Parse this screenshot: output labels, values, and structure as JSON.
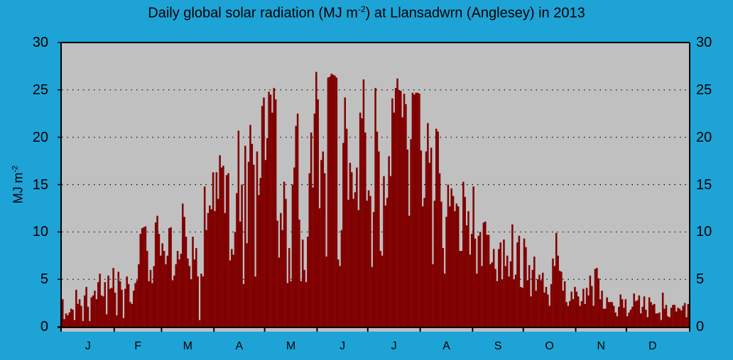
{
  "chart_data": {
    "type": "bar",
    "title": "Daily global solar radiation (MJ m-2) at Llansadwrn (Anglesey) in 2013",
    "title_main": "Daily global solar radiation (MJ m",
    "title_sup": "-2",
    "title_rest": ") at Llansadwrn (Anglesey) in 2013",
    "xlabel": "",
    "ylabel": "MJ m-2",
    "ylabel_main": "MJ m",
    "ylabel_sup": "-2",
    "ylim": [
      0,
      30
    ],
    "yticks": [
      0,
      5,
      10,
      15,
      20,
      25,
      30
    ],
    "grid": "horizontal dotted",
    "legend": "none",
    "months": [
      "J",
      "F",
      "M",
      "A",
      "M",
      "J",
      "J",
      "A",
      "S",
      "O",
      "N",
      "D"
    ],
    "month_days": [
      31,
      28,
      31,
      30,
      31,
      30,
      31,
      31,
      30,
      31,
      30,
      31
    ],
    "series": [
      {
        "name": "Daily global solar radiation",
        "color": "#800000",
        "values": [
          2.9,
          0.8,
          1.4,
          1.2,
          1.5,
          1.9,
          1.8,
          0.7,
          3.9,
          2.4,
          2.9,
          2.2,
          0.6,
          3.3,
          4.2,
          2.1,
          0.6,
          3.1,
          3.3,
          3.8,
          2.9,
          4.7,
          5.6,
          3.3,
          3.2,
          4.7,
          1.3,
          5.4,
          4.0,
          4.1,
          6.2,
          3.6,
          1.2,
          5.8,
          4.8,
          3.9,
          0.9,
          4.0,
          5.3,
          4.5,
          2.6,
          2.4,
          3.8,
          4.6,
          4.9,
          6.6,
          9.8,
          10.4,
          10.5,
          10.6,
          8.0,
          4.8,
          6.0,
          4.6,
          6.4,
          11.0,
          11.7,
          9.8,
          7.5,
          8.8,
          8.0,
          6.6,
          7.5,
          10.4,
          10.5,
          4.9,
          5.4,
          6.6,
          8.0,
          7.1,
          7.7,
          13.0,
          11.6,
          9.5,
          7.2,
          6.4,
          5.0,
          9.5,
          7.1,
          8.3,
          5.3,
          0.7,
          5.6,
          5.3,
          14.8,
          10.2,
          12.0,
          12.8,
          12.4,
          16.3,
          12.2,
          16.3,
          13.5,
          18.1,
          16.8,
          17.0,
          12.0,
          16.0,
          16.2,
          7.0,
          8.2,
          7.6,
          10.0,
          14.1,
          20.7,
          11.1,
          15.0,
          4.5,
          19.1,
          8.8,
          17.4,
          21.3,
          19.3,
          17.1,
          5.3,
          18.5,
          13.9,
          15.7,
          23.3,
          24.2,
          17.6,
          19.9,
          24.8,
          24.5,
          22.6,
          25.2,
          24.0,
          11.2,
          7.3,
          12.0,
          10.2,
          15.3,
          13.5,
          4.6,
          8.3,
          4.8,
          15.0,
          16.8,
          21.2,
          22.5,
          11.3,
          4.8,
          9.2,
          6.0,
          4.7,
          9.5,
          16.2,
          20.5,
          14.7,
          22.5,
          26.9,
          24.0,
          12.5,
          17.6,
          18.5,
          16.2,
          7.4,
          26.3,
          26.4,
          26.7,
          26.6,
          26.5,
          26.3,
          7.1,
          6.4,
          10.2,
          19.4,
          24.2,
          20.9,
          13.4,
          17.3,
          16.3,
          13.5,
          14.2,
          16.8,
          12.3,
          22.6,
          22.0,
          26.1,
          20.5,
          13.3,
          14.4,
          13.8,
          6.3,
          12.1,
          25.2,
          20.6,
          18.5,
          8.0,
          7.5,
          15.9,
          12.8,
          13.6,
          18.0,
          15.9,
          24.1,
          22.6,
          25.2,
          26.2,
          25.0,
          24.9,
          22.1,
          24.6,
          23.5,
          18.7,
          11.7,
          19.8,
          24.7,
          24.5,
          24.7,
          24.7,
          24.6,
          18.6,
          12.7,
          13.6,
          18.5,
          21.5,
          17.3,
          18.9,
          6.6,
          13.3,
          20.9,
          20.6,
          16.2,
          13.2,
          8.3,
          5.6,
          11.6,
          15.0,
          12.7,
          14.6,
          13.8,
          12.2,
          13.0,
          12.7,
          8.0,
          8.0,
          15.3,
          13.7,
          10.7,
          12.2,
          7.6,
          9.8,
          14.8,
          9.3,
          5.6,
          9.6,
          10.0,
          6.4,
          11.0,
          11.1,
          9.7,
          9.7,
          6.6,
          6.8,
          8.2,
          6.1,
          4.8,
          8.2,
          8.9,
          5.0,
          9.2,
          6.4,
          7.5,
          5.3,
          6.9,
          10.8,
          5.0,
          5.5,
          8.9,
          9.6,
          4.2,
          4.1,
          9.3,
          8.4,
          4.9,
          6.5,
          3.2,
          6.0,
          7.4,
          3.8,
          5.0,
          5.5,
          4.9,
          5.7,
          3.6,
          4.2,
          3.4,
          2.2,
          4.5,
          7.2,
          6.4,
          9.9,
          7.5,
          5.9,
          5.8,
          3.8,
          4.8,
          2.6,
          2.2,
          2.7,
          3.7,
          2.9,
          4.2,
          3.7,
          3.2,
          2.2,
          2.7,
          4.0,
          2.4,
          4.1,
          3.3,
          5.4,
          4.3,
          2.2,
          6.1,
          6.2,
          5.1,
          2.9,
          3.8,
          1.9,
          1.9,
          3.1,
          2.6,
          2.6,
          2.6,
          2.2,
          1.5,
          1.1,
          2.1,
          3.4,
          2.9,
          2.0,
          2.9,
          1.1,
          1.5,
          1.8,
          2.1,
          3.5,
          2.7,
          2.8,
          3.3,
          1.4,
          2.1,
          3.2,
          1.8,
          1.0,
          3.1,
          2.6,
          2.3,
          2.4,
          1.4,
          1.4,
          1.5,
          0.7,
          3.6,
          1.9,
          2.3,
          1.1,
          1.0,
          2.0,
          2.3,
          2.3,
          1.6,
          2.0,
          1.9,
          1.7,
          2.2,
          2.5,
          1.0,
          2.4
        ]
      }
    ]
  },
  "colors": {
    "background": "#1ea3d6",
    "plot_background": "#c0c0c0",
    "bar": "#800000",
    "axis": "#000000"
  }
}
